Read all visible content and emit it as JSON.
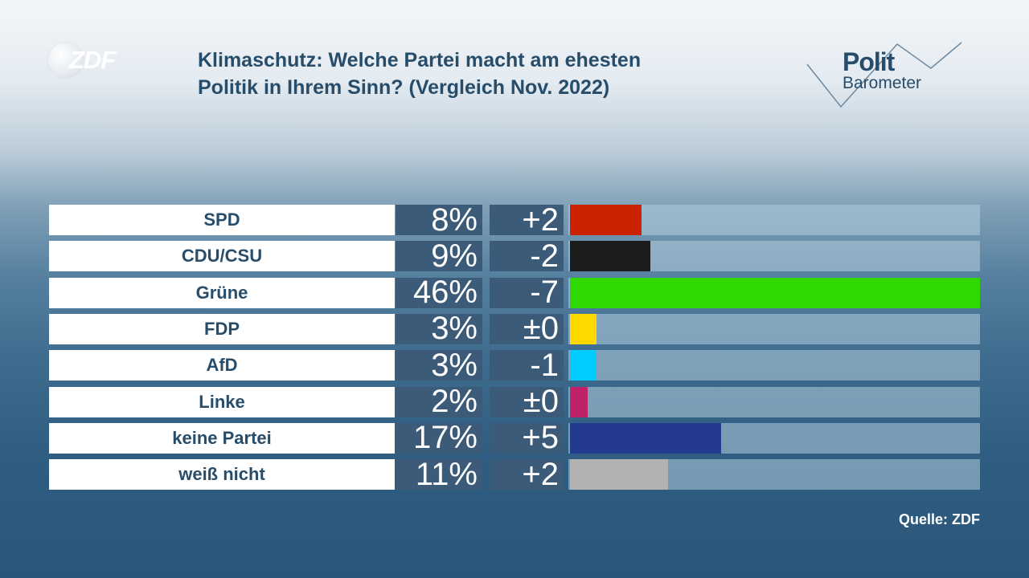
{
  "logo": {
    "text": "ZDF"
  },
  "title": {
    "line1": "Klimaschutz: Welche Partei macht am ehesten",
    "line2": "Politik in Ihrem Sinn? (Vergleich Nov. 2022)"
  },
  "brand": {
    "line1": "Polit",
    "line2": "Barometer"
  },
  "source": "Quelle: ZDF",
  "chart_data": {
    "type": "bar",
    "orientation": "horizontal",
    "title": "Klimaschutz: Welche Partei macht am ehesten Politik in Ihrem Sinn? (Vergleich Nov. 2022)",
    "categories": [
      "SPD",
      "CDU/CSU",
      "Grüne",
      "FDP",
      "AfD",
      "Linke",
      "keine Partei",
      "weiß nicht"
    ],
    "values": [
      8,
      9,
      46,
      3,
      3,
      2,
      17,
      11
    ],
    "value_labels": [
      "8%",
      "9%",
      "46%",
      "3%",
      "3%",
      "2%",
      "17%",
      "11%"
    ],
    "changes": [
      "+2",
      "-2",
      "-7",
      "±0",
      "-1",
      "±0",
      "+5",
      "+2"
    ],
    "colors": [
      "#cc2200",
      "#1c1c1c",
      "#2ed800",
      "#ffd800",
      "#00ccff",
      "#c0226a",
      "#233a8e",
      "#b2b2b2"
    ],
    "xlim": [
      0,
      46
    ]
  }
}
